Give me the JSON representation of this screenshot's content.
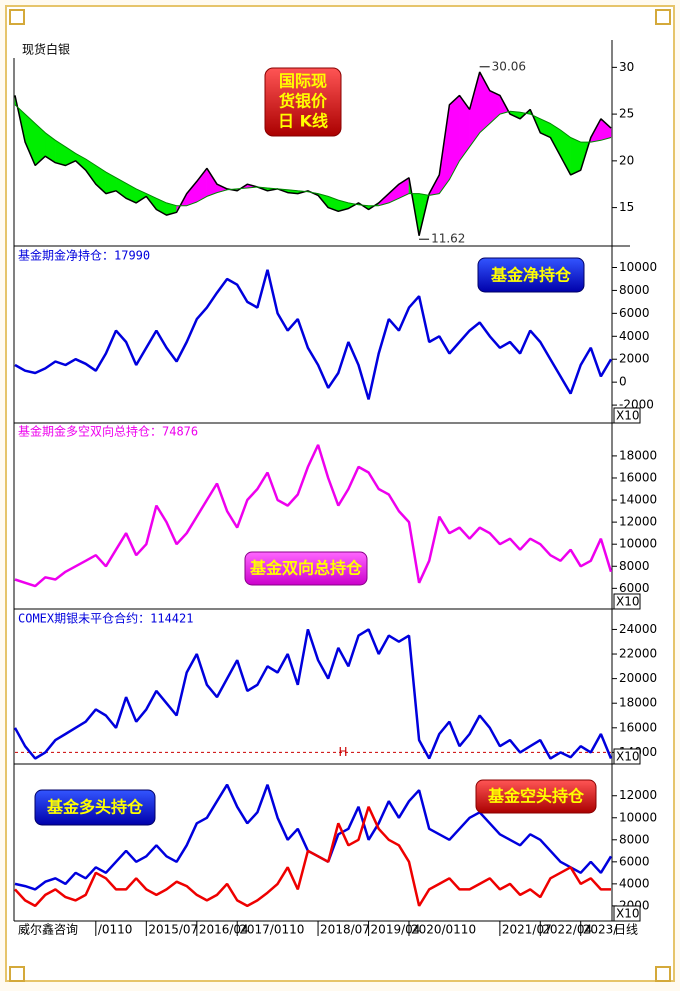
{
  "chart_data": [
    {
      "type": "line",
      "label": "现货白银",
      "title_lines": [
        "国际现",
        "货银价",
        "日 K线"
      ],
      "ylim": [
        11,
        31
      ],
      "yticks": [
        15,
        20,
        25,
        30
      ],
      "grid": false,
      "fill_ma_above": "#00ee00",
      "fill_ma_below": "#ff00ff",
      "annotations": [
        {
          "index": 46,
          "value": 30.06,
          "label": "30.06"
        },
        {
          "index": 40,
          "value": 11.62,
          "label": "11.62"
        }
      ],
      "series": [
        {
          "color": "#000000",
          "values": [
            27,
            22,
            19.5,
            20.5,
            19.8,
            19.5,
            20,
            19,
            17.5,
            16.5,
            16.8,
            16,
            15.5,
            16.2,
            14.8,
            14.2,
            14.5,
            16.5,
            17.8,
            19.2,
            17.5,
            17,
            16.8,
            17.5,
            17.2,
            16.8,
            17,
            16.6,
            16.5,
            16.8,
            16.3,
            15,
            14.6,
            14.9,
            15.5,
            14.8,
            15.5,
            16.5,
            17.5,
            18.2,
            12,
            16.5,
            18.5,
            26,
            27,
            25.5,
            29.5,
            27.5,
            27,
            25,
            24.5,
            25.5,
            23,
            22.5,
            20.5,
            18.5,
            19,
            22.5,
            24.5,
            23.5
          ]
        },
        {
          "color": "#008800",
          "values": [
            26,
            25,
            24,
            23,
            22.2,
            21.5,
            20.8,
            20.2,
            19.5,
            18.8,
            18.2,
            17.6,
            17,
            16.5,
            16,
            15.5,
            15.2,
            15.2,
            15.6,
            16.2,
            16.6,
            16.9,
            17,
            17.1,
            17.2,
            17.1,
            17,
            16.9,
            16.8,
            16.7,
            16.5,
            16.2,
            15.8,
            15.5,
            15.3,
            15.2,
            15.2,
            15.5,
            16,
            16.5,
            16.5,
            16.3,
            16.5,
            18,
            20,
            21.5,
            23,
            24,
            25,
            25.3,
            25.2,
            25,
            24.5,
            24,
            23.3,
            22.5,
            22,
            22,
            22.2,
            22.5
          ]
        }
      ]
    },
    {
      "type": "line",
      "title": "基金期金净持仓：17990",
      "multiplier_note": "X10",
      "ylim": [
        -3300,
        11700
      ],
      "yticks": [
        -2000,
        0,
        2000,
        4000,
        6000,
        8000,
        10000
      ],
      "grid": false,
      "series": [
        {
          "name": "基金净持仓",
          "color": "#0000dd",
          "values": [
            1500,
            1000,
            800,
            1200,
            1800,
            1500,
            2000,
            1600,
            1000,
            2500,
            4500,
            3500,
            1500,
            3000,
            4500,
            3000,
            1800,
            3500,
            5500,
            6500,
            7800,
            9000,
            8500,
            7000,
            6500,
            9800,
            6000,
            4500,
            5500,
            3000,
            1500,
            -500,
            800,
            3500,
            1500,
            -1500,
            2500,
            5500,
            4500,
            6500,
            7500,
            3500,
            4000,
            2500,
            3500,
            4500,
            5200,
            4000,
            3000,
            3500,
            2500,
            4500,
            3500,
            2000,
            500,
            -1000,
            1500,
            3000,
            500,
            2000
          ]
        }
      ]
    },
    {
      "type": "line",
      "title": "基金期金多空双向总持仓：74876",
      "multiplier_note": "X10",
      "ylim": [
        4400,
        20800
      ],
      "yticks": [
        6000,
        8000,
        10000,
        12000,
        14000,
        16000,
        18000
      ],
      "grid": false,
      "series": [
        {
          "name": "基金双向总持仓",
          "color": "#ee00ee",
          "values": [
            6800,
            6500,
            6200,
            7000,
            6800,
            7500,
            8000,
            8500,
            9000,
            8000,
            9500,
            11000,
            9000,
            10000,
            13500,
            12000,
            10000,
            11000,
            12500,
            14000,
            15500,
            13000,
            11500,
            14000,
            15000,
            16500,
            14000,
            13500,
            14500,
            17000,
            19000,
            16000,
            13500,
            15000,
            17000,
            16500,
            15000,
            14500,
            13000,
            12000,
            6500,
            8500,
            12500,
            11000,
            11500,
            10500,
            11500,
            11000,
            10000,
            10500,
            9500,
            10500,
            10000,
            9000,
            8500,
            9500,
            8000,
            8500,
            10500,
            7500
          ]
        }
      ]
    },
    {
      "type": "line",
      "title": "COMEX期银未平仓合约：114421",
      "multiplier_note": "X10",
      "ylim": [
        13300,
        25500
      ],
      "yticks": [
        14000,
        16000,
        18000,
        20000,
        22000,
        24000
      ],
      "grid": false,
      "reference_line": {
        "value": 14000,
        "label": "H",
        "color": "#cc0000"
      },
      "series": [
        {
          "color": "#0000dd",
          "values": [
            16000,
            14500,
            13500,
            14000,
            15000,
            15500,
            16000,
            16500,
            17500,
            17000,
            16000,
            18500,
            16500,
            17500,
            19000,
            18000,
            17000,
            20500,
            22000,
            19500,
            18500,
            20000,
            21500,
            19000,
            19500,
            21000,
            20500,
            22000,
            19500,
            24000,
            21500,
            20000,
            22500,
            21000,
            23500,
            24000,
            22000,
            23500,
            23000,
            23500,
            15000,
            13500,
            15500,
            16500,
            14500,
            15500,
            17000,
            16000,
            14500,
            15000,
            14000,
            14500,
            15000,
            13500,
            14000,
            13600,
            14500,
            14000,
            15500,
            13500
          ]
        }
      ]
    },
    {
      "type": "line",
      "multiplier_note": "X10",
      "ylim": [
        900,
        14700
      ],
      "yticks": [
        2000,
        4000,
        6000,
        8000,
        10000,
        12000
      ],
      "grid": false,
      "categories": [
        null,
        null,
        null,
        null,
        null,
        null,
        null,
        null,
        "/0110",
        null,
        null,
        null,
        null,
        "2015/07",
        null,
        null,
        null,
        null,
        "2016/04",
        null,
        null,
        null,
        "2017/0110",
        null,
        null,
        null,
        null,
        null,
        null,
        null,
        "2018/07",
        null,
        null,
        null,
        null,
        "2019/04",
        null,
        null,
        null,
        "2020/0110",
        null,
        null,
        null,
        null,
        null,
        null,
        null,
        null,
        "2021/07",
        null,
        null,
        null,
        "2022/04",
        null,
        null,
        null,
        "2023/",
        null,
        null,
        null
      ],
      "series": [
        {
          "name": "基金多头持仓",
          "color": "#0000dd",
          "values": [
            4000,
            3800,
            3500,
            4200,
            4500,
            4000,
            5000,
            4500,
            5500,
            5000,
            6000,
            7000,
            6000,
            6500,
            7500,
            6500,
            6000,
            7500,
            9500,
            10000,
            11500,
            13000,
            11000,
            9500,
            10500,
            13000,
            10000,
            8000,
            9000,
            7000,
            6500,
            6000,
            8500,
            9000,
            11000,
            8000,
            9500,
            11500,
            10000,
            11500,
            12500,
            9000,
            8500,
            8000,
            9000,
            10000,
            10500,
            9500,
            8500,
            8000,
            7500,
            8500,
            8000,
            7000,
            6000,
            5500,
            5000,
            6000,
            5000,
            6500
          ]
        },
        {
          "name": "基金空头持仓",
          "color": "#ee0000",
          "values": [
            3500,
            2500,
            2000,
            3000,
            3500,
            2800,
            2500,
            3000,
            5000,
            4500,
            3500,
            3500,
            4500,
            3500,
            3000,
            3500,
            4200,
            3800,
            3000,
            2500,
            3000,
            4000,
            2500,
            2000,
            2500,
            3200,
            4000,
            5500,
            3500,
            7000,
            6500,
            6000,
            9500,
            7500,
            8000,
            11000,
            9000,
            8000,
            7500,
            6000,
            2000,
            3500,
            4000,
            4500,
            3500,
            3500,
            4000,
            4500,
            3500,
            4000,
            3000,
            3500,
            2800,
            4500,
            5000,
            5500,
            4000,
            4500,
            3500,
            3500
          ]
        }
      ]
    }
  ],
  "source": "威尔鑫咨询",
  "period": "日线"
}
